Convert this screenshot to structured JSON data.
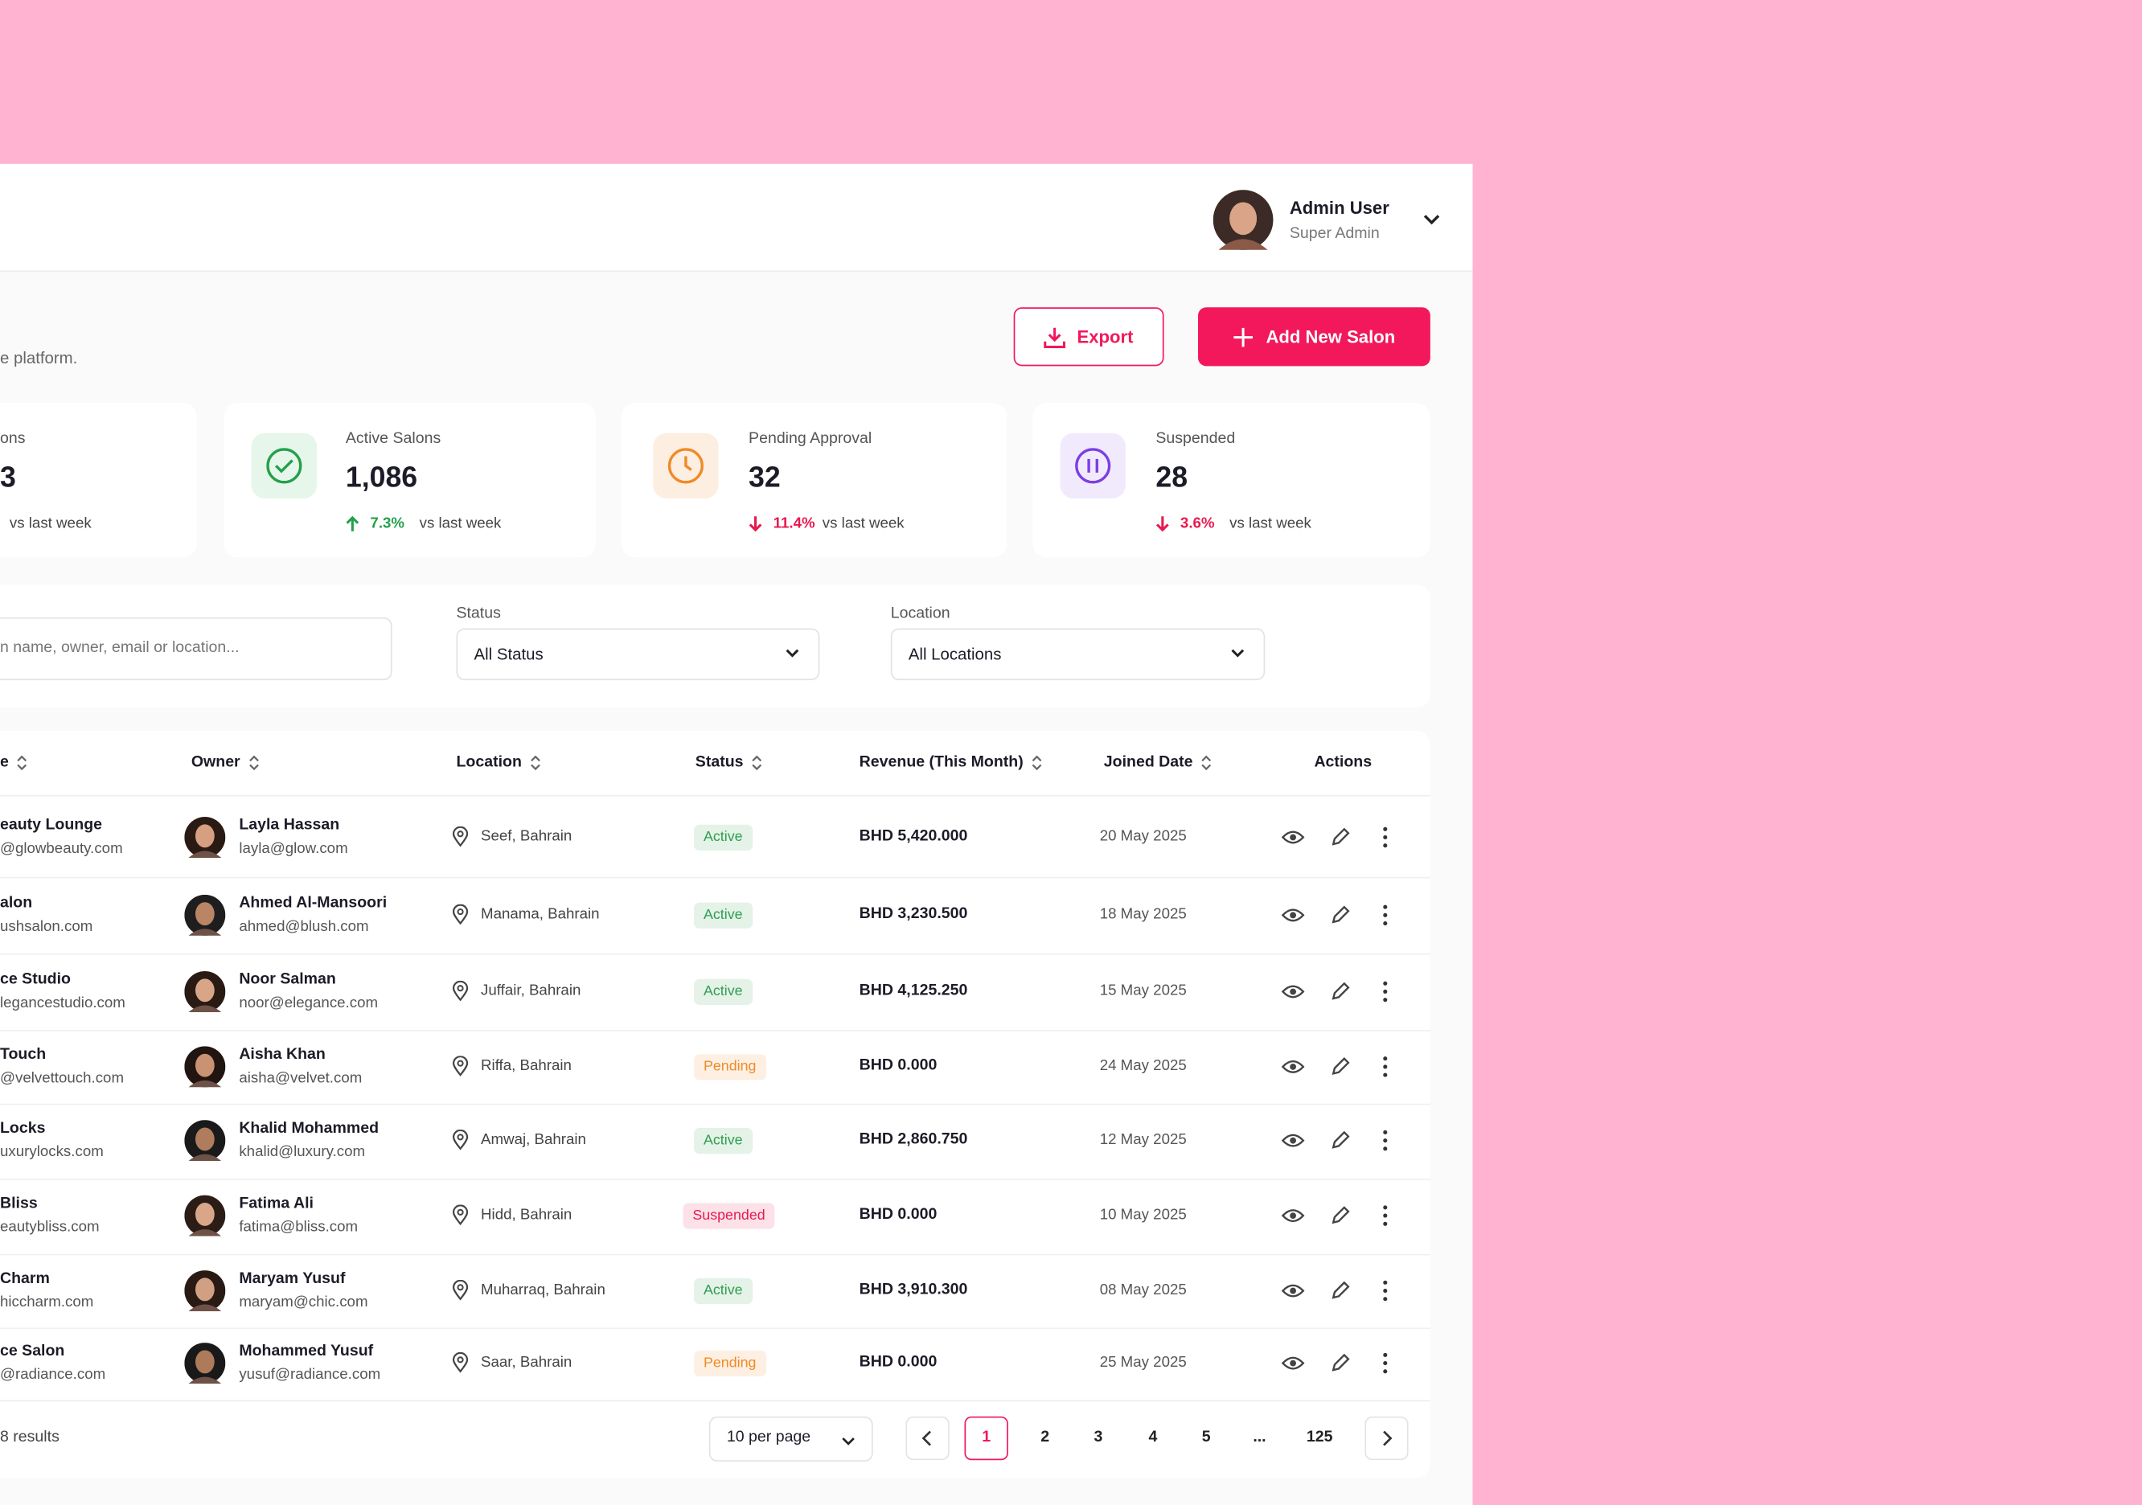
{
  "header": {
    "user_name": "Admin User",
    "user_role": "Super Admin"
  },
  "page": {
    "subtitle": "e platform.",
    "export_button": "Export",
    "add_button": "Add New Salon"
  },
  "stats": [
    {
      "label": "ons",
      "value": "3",
      "compare": "vs last week"
    },
    {
      "label": "Active Salons",
      "value": "1,086",
      "change": "7.3%",
      "direction": "up",
      "color": "#22a04b",
      "compare": "vs last week"
    },
    {
      "label": "Pending Approval",
      "value": "32",
      "change": "11.4%",
      "direction": "down",
      "color": "#e8194f",
      "compare": "vs last week"
    },
    {
      "label": "Suspended",
      "value": "28",
      "change": "3.6%",
      "direction": "down",
      "color": "#e8194f",
      "compare": "vs last week"
    }
  ],
  "filters": {
    "search_placeholder": "n name, owner, email or location...",
    "status_label": "Status",
    "status_value": "All Status",
    "location_label": "Location",
    "location_value": "All Locations"
  },
  "table": {
    "columns": [
      "e",
      "Owner",
      "Location",
      "Status",
      "Revenue (This Month)",
      "Joined Date",
      "Actions"
    ],
    "rows": [
      {
        "salon": "eauty Lounge",
        "salon_email": "@glowbeauty.com",
        "owner": "Layla Hassan",
        "owner_email": "layla@glow.com",
        "location": "Seef, Bahrain",
        "status": "Active",
        "status_color": "#2f9e4f",
        "revenue": "BHD 5,420.000",
        "joined": "20 May 2025"
      },
      {
        "salon": "alon",
        "salon_email": "ushsalon.com",
        "owner": "Ahmed Al-Mansoori",
        "owner_email": "ahmed@blush.com",
        "location": "Manama, Bahrain",
        "status": "Active",
        "status_color": "#2f9e4f",
        "revenue": "BHD 3,230.500",
        "joined": "18 May 2025"
      },
      {
        "salon": "ce Studio",
        "salon_email": "legancestudio.com",
        "owner": "Noor Salman",
        "owner_email": "noor@elegance.com",
        "location": "Juffair, Bahrain",
        "status": "Active",
        "status_color": "#2f9e4f",
        "revenue": "BHD 4,125.250",
        "joined": "15 May 2025"
      },
      {
        "salon": "Touch",
        "salon_email": "@velvettouch.com",
        "owner": "Aisha Khan",
        "owner_email": "aisha@velvet.com",
        "location": "Riffa, Bahrain",
        "status": "Pending",
        "status_color": "#f08a24",
        "revenue": "BHD 0.000",
        "joined": "24 May 2025"
      },
      {
        "salon": "Locks",
        "salon_email": "uxurylocks.com",
        "owner": "Khalid Mohammed",
        "owner_email": "khalid@luxury.com",
        "location": "Amwaj, Bahrain",
        "status": "Active",
        "status_color": "#2f9e4f",
        "revenue": "BHD 2,860.750",
        "joined": "12 May 2025"
      },
      {
        "salon": "Bliss",
        "salon_email": "eautybliss.com",
        "owner": "Fatima Ali",
        "owner_email": "fatima@bliss.com",
        "location": "Hidd, Bahrain",
        "status": "Suspended",
        "status_color": "#e8194f",
        "revenue": "BHD 0.000",
        "joined": "10 May 2025"
      },
      {
        "salon": "Charm",
        "salon_email": "hiccharm.com",
        "owner": "Maryam Yusuf",
        "owner_email": "maryam@chic.com",
        "location": "Muharraq, Bahrain",
        "status": "Active",
        "status_color": "#2f9e4f",
        "revenue": "BHD 3,910.300",
        "joined": "08 May 2025"
      },
      {
        "salon": "ce Salon",
        "salon_email": "@radiance.com",
        "owner": "Mohammed Yusuf",
        "owner_email": "yusuf@radiance.com",
        "location": "Saar, Bahrain",
        "status": "Pending",
        "status_color": "#f08a24",
        "revenue": "BHD 0.000",
        "joined": "25 May 2025"
      }
    ]
  },
  "pagination": {
    "results": "8 results",
    "per_page": "10 per page",
    "pages": [
      "1",
      "2",
      "3",
      "4",
      "5",
      "...",
      "125"
    ]
  }
}
